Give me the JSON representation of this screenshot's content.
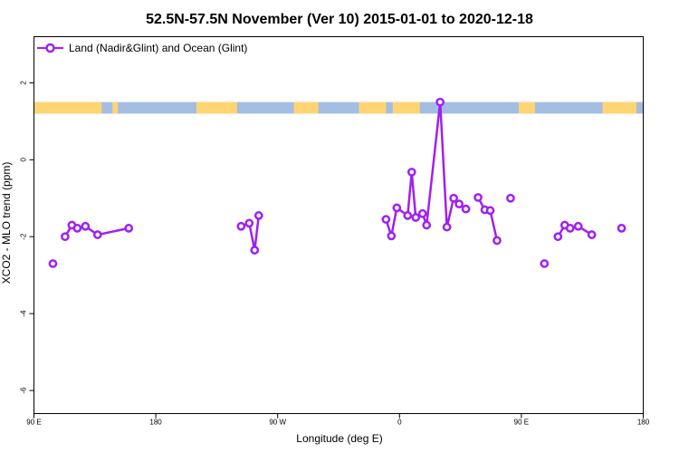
{
  "chart_data": {
    "type": "line",
    "title": "52.5N-57.5N November (Ver 10)   2015-01-01 to 2020-12-18",
    "xlabel": "Longitude (deg E)",
    "ylabel": "XCO2 - MLO trend (ppm)",
    "xlim": [
      90,
      540
    ],
    "ylim": [
      -6.6,
      3.2
    ],
    "x_ticks": [
      {
        "value": 90,
        "label": "90 E"
      },
      {
        "value": 180,
        "label": "180"
      },
      {
        "value": 270,
        "label": "90 W"
      },
      {
        "value": 360,
        "label": "0"
      },
      {
        "value": 450,
        "label": "90 E"
      },
      {
        "value": 540,
        "label": "180"
      }
    ],
    "y_ticks": [
      {
        "value": 2,
        "label": "2"
      },
      {
        "value": 0,
        "label": "0"
      },
      {
        "value": -2,
        "label": "-2"
      },
      {
        "value": -4,
        "label": "-4"
      },
      {
        "value": -6,
        "label": "-6"
      }
    ],
    "grid": false,
    "legend_position": "top-left",
    "series": [
      {
        "name": "Land (Nadir&Glint) and Ocean (Glint)",
        "color": "#a020f0",
        "segments": [
          [
            [
              104,
              -2.7
            ]
          ],
          [
            [
              113,
              -2.0
            ],
            [
              118,
              -1.7
            ],
            [
              122,
              -1.78
            ],
            [
              128,
              -1.73
            ],
            [
              137,
              -1.95
            ],
            [
              160,
              -1.78
            ]
          ],
          [
            [
              243,
              -1.73
            ],
            [
              249,
              -1.65
            ],
            [
              253,
              -2.35
            ],
            [
              256,
              -1.45
            ]
          ],
          [
            [
              350,
              -1.55
            ],
            [
              354,
              -1.98
            ],
            [
              358,
              -1.25
            ],
            [
              366,
              -1.45
            ],
            [
              369,
              -0.32
            ],
            [
              372,
              -1.5
            ],
            [
              377,
              -1.4
            ],
            [
              380,
              -1.7
            ],
            [
              390,
              1.5
            ],
            [
              395,
              -1.75
            ],
            [
              400,
              -1.0
            ],
            [
              404,
              -1.15
            ],
            [
              409,
              -1.28
            ]
          ],
          [
            [
              418,
              -0.98
            ],
            [
              423,
              -1.3
            ],
            [
              427,
              -1.32
            ],
            [
              432,
              -2.1
            ]
          ],
          [
            [
              442,
              -1.0
            ]
          ],
          [
            [
              467,
              -2.7
            ]
          ],
          [
            [
              477,
              -2.0
            ],
            [
              482,
              -1.7
            ],
            [
              486,
              -1.78
            ],
            [
              492,
              -1.73
            ],
            [
              502,
              -1.95
            ]
          ],
          [
            [
              524,
              -1.78
            ]
          ]
        ]
      }
    ],
    "land_ocean_band": {
      "y_range": [
        1.2,
        1.5
      ],
      "land_color": "#ffd573",
      "ocean_color": "#a4bde3",
      "land_intervals": [
        [
          90,
          140
        ],
        [
          148,
          152
        ],
        [
          210,
          240
        ],
        [
          282,
          300
        ],
        [
          330,
          350
        ],
        [
          355,
          375
        ],
        [
          448,
          460
        ],
        [
          510,
          535
        ]
      ]
    }
  }
}
